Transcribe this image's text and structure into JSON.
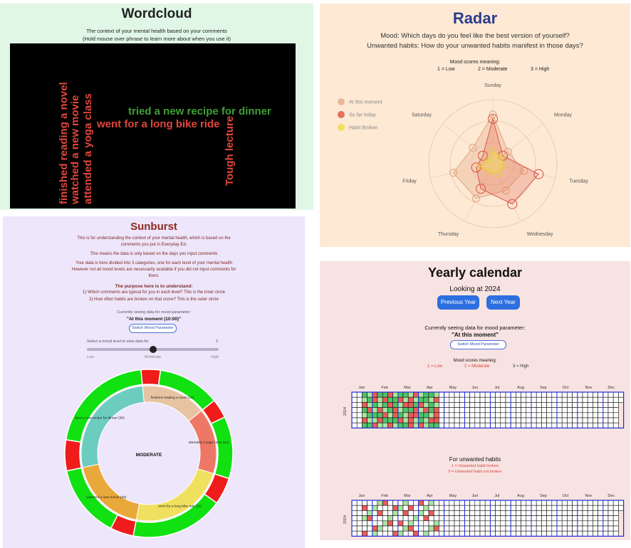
{
  "wordcloud": {
    "title": "Wordcloud",
    "subtitle1": "The context of your mental health based on your comments",
    "subtitle2": "(Hold mouse over phrase to learn more about when you use it)",
    "phrases": [
      {
        "text": "finished reading a novel",
        "color": "#e0463c",
        "vertical": true
      },
      {
        "text": "watched a new movie",
        "color": "#e0463c",
        "vertical": true
      },
      {
        "text": "attended a yoga class",
        "color": "#e0463c",
        "vertical": true
      },
      {
        "text": "tried a new recipe for dinner",
        "color": "#3f9f37",
        "vertical": false
      },
      {
        "text": "went for a long bike ride",
        "color": "#e0463c",
        "vertical": false
      },
      {
        "text": "Tough lecture",
        "color": "#e0463c",
        "vertical": true
      }
    ]
  },
  "radar": {
    "title": "Radar",
    "line1": "Mood: Which days do you feel like the best version of yourself?",
    "line2": "Unwanted habits: How do your unwanted habits manifest in those days?",
    "scores_title": "Mood scores meaning:",
    "scores": [
      "1 = Low",
      "2 = Moderate",
      "3 = High"
    ],
    "legend": [
      {
        "label": "At this moment",
        "color": "#eab99a"
      },
      {
        "label": "So far today",
        "color": "#e5705c"
      },
      {
        "label": "Habit Broken",
        "color": "#f1e05a"
      }
    ]
  },
  "sunburst": {
    "title": "Sunburst",
    "p1a": "This is for understanding the context of your mental health, which is based on the",
    "p1b": "comments you put in Everyday Ed.",
    "p2": "This means the data is only based on the days you input comments",
    "p3a": "Your data is here divided into 3 categories, one for each level of your mental health",
    "p3b": "However not all mood levels are necessarily available if you did not input comments for",
    "p3c": "them.",
    "purpose_title": "The purpose here is to understand:",
    "purpose1": "1) Which comments are typical for you in each level? This is the inner circle",
    "purpose2": "2) How often habits are broken on that score? This is the outer circle",
    "param_label": "Currently seeing data for mood parameter:",
    "param_value": "\"At this moment (10:00)\"",
    "switch_label": "Switch Mood Parameter",
    "slider_label": "Select a mood level to view data for",
    "slider_value": "2",
    "slider_fraction": 0.5,
    "slider_low": "Low",
    "slider_mid": "Moderate",
    "slider_high": "High",
    "center_label": "MODERATE"
  },
  "calendar": {
    "title": "Yearly calendar",
    "looking_at": "Looking at 2024",
    "prev_label": "Previous Year",
    "next_label": "Next Year",
    "param_label": "Currently seeing data for mood parameter:",
    "param_value": "\"At this moment\"",
    "switch_label": "Switch Mood Parameter",
    "scores_title": "Mood scores meaning:",
    "scores": [
      "1 = Low",
      "2 = Moderate",
      "3 = High"
    ],
    "habits_title": "For unwanted habits",
    "habits1": "1 = Unwanted habit broken",
    "habits2": "0 = Unwanted habit not broken",
    "year": "2024",
    "months": [
      "Jan",
      "Feb",
      "Mar",
      "Apr",
      "May",
      "Jun",
      "Jul",
      "Aug",
      "Sep",
      "Oct",
      "Nov",
      "Dec"
    ],
    "low_color": "#ec5b5b",
    "mid_color": "#a8e6a1",
    "high_color": "#4ec46a"
  },
  "chart_data": [
    {
      "type": "radar",
      "categories": [
        "Sunday",
        "Monday",
        "Tuesday",
        "Wednesday",
        "Thursday",
        "Friday",
        "Saturday"
      ],
      "rmax": 3,
      "series": [
        {
          "name": "At this moment",
          "values": [
            2.3,
            0.9,
            1.5,
            1.4,
            1.8,
            1.9,
            1.2
          ]
        },
        {
          "name": "So far today",
          "values": [
            2.1,
            0.6,
            2.2,
            2.1,
            1.3,
            0.8,
            0.6
          ]
        },
        {
          "name": "Habit Broken",
          "values": [
            0.6,
            0.5,
            0.5,
            0.5,
            0.4,
            0.6,
            0.3
          ]
        }
      ]
    },
    {
      "type": "sunburst",
      "center": "MODERATE",
      "inner": [
        {
          "label": "finished reading a novel (21)",
          "value": 21,
          "color": "#e8c3a2"
        },
        {
          "label": "attended a yoga class (21)",
          "value": 21,
          "color": "#ee7865"
        },
        {
          "label": "went for a long bike ride (31)",
          "value": 31,
          "color": "#f0e060"
        },
        {
          "label": "watched a new movie (25)",
          "value": 25,
          "color": "#e9a83a"
        },
        {
          "label": "tried a new recipe for dinner (36)",
          "value": 36,
          "color": "#6ccdbf"
        }
      ],
      "outer": [
        {
          "values": [
            5,
            16
          ]
        },
        {
          "values": [
            5,
            16
          ]
        },
        {
          "values": [
            7,
            24
          ]
        },
        {
          "values": [
            6,
            19
          ]
        },
        {
          "values": [
            8,
            28
          ]
        }
      ]
    },
    {
      "type": "heatmap",
      "title": "Yearly calendar",
      "year": "2024",
      "weeks": 53,
      "days": 7,
      "filled_weeks": 17,
      "mood_values": [
        "3213312332123321223111",
        "2312133121233212131223",
        "1232313211312321233132",
        "3121231233121312312223",
        "2333121321133213212131",
        "1221333121232112233312",
        "3312212331212331121233"
      ],
      "habit_values": [
        "0000100000010000000001",
        "1000001001000001001000",
        "0001000010000100000100",
        "0100000000001000010000",
        "0000010100000000100010",
        "0010000001000010000000",
        "1000001000100000000100"
      ]
    }
  ]
}
